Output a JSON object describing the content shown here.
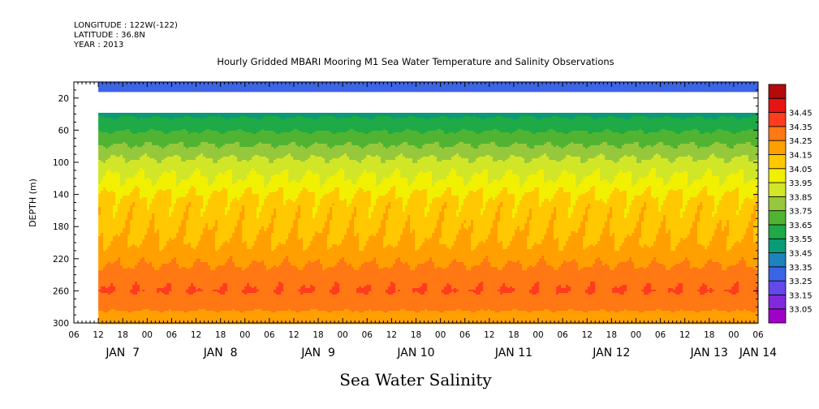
{
  "meta_lines": [
    "LONGITUDE : 122W(-122)",
    "LATITUDE : 36.8N",
    "YEAR : 2013"
  ],
  "chart_data": {
    "type": "heatmap",
    "title": "Hourly Gridded MBARI Mooring M1 Sea Water Temperature and Salinity Observations",
    "xlabel": "Sea Water Salinity",
    "ylabel": "DEPTH (m)",
    "x_unit": "hour",
    "x_range_hours": [
      0,
      168
    ],
    "data_start_hour": 6,
    "x_hour_ticks": [
      "06",
      "12",
      "18",
      "00",
      "06",
      "12",
      "18",
      "00",
      "06",
      "12",
      "18",
      "00",
      "06",
      "12",
      "18",
      "00",
      "06",
      "12",
      "18",
      "00",
      "06",
      "12",
      "18",
      "00",
      "06",
      "12",
      "18",
      "00",
      "06"
    ],
    "x_hour_tick_positions": [
      0,
      6,
      12,
      18,
      24,
      30,
      36,
      42,
      48,
      54,
      60,
      66,
      72,
      78,
      84,
      90,
      96,
      102,
      108,
      114,
      120,
      126,
      132,
      138,
      144,
      150,
      156,
      162,
      168
    ],
    "x_day_labels": [
      {
        "label": "JAN  7",
        "at_hour": 12
      },
      {
        "label": "JAN  8",
        "at_hour": 36
      },
      {
        "label": "JAN  9",
        "at_hour": 60
      },
      {
        "label": "JAN 10",
        "at_hour": 84
      },
      {
        "label": "JAN 11",
        "at_hour": 108
      },
      {
        "label": "JAN 12",
        "at_hour": 132
      },
      {
        "label": "JAN 13",
        "at_hour": 156
      },
      {
        "label": "JAN 14",
        "at_hour": 168
      }
    ],
    "ylim": [
      0,
      300
    ],
    "y_inverted": true,
    "y_ticks": [
      20,
      60,
      100,
      140,
      180,
      220,
      260,
      300
    ],
    "levels": [
      33.05,
      33.15,
      33.25,
      33.35,
      33.45,
      33.55,
      33.65,
      33.75,
      33.85,
      33.95,
      34.05,
      34.15,
      34.25,
      34.35,
      34.45
    ],
    "level_colors": [
      "#a000c8",
      "#8228dc",
      "#6448e8",
      "#3c64e6",
      "#1e82be",
      "#0a9a78",
      "#1eaa46",
      "#50b432",
      "#96c83c",
      "#d2e628",
      "#f0f000",
      "#ffc800",
      "#ffa000",
      "#ff7814",
      "#ff3c1e",
      "#e61414",
      "#b40a0a"
    ],
    "profile": {
      "depths": [
        10,
        38,
        40,
        50,
        60,
        70,
        80,
        90,
        100,
        110,
        120,
        130,
        140,
        150,
        160,
        170,
        180,
        190,
        200,
        210,
        220,
        230,
        240,
        250,
        260,
        270,
        280,
        290,
        300
      ],
      "salinity": [
        33.3,
        33.3,
        33.53,
        33.58,
        33.64,
        33.7,
        33.76,
        33.82,
        33.88,
        33.92,
        33.96,
        34.0,
        34.05,
        34.09,
        34.1,
        34.11,
        34.12,
        34.14,
        34.16,
        34.19,
        34.22,
        34.26,
        34.3,
        34.33,
        34.35,
        34.32,
        34.27,
        34.23,
        34.2
      ]
    },
    "missing_depth_range": [
      13,
      38
    ]
  }
}
